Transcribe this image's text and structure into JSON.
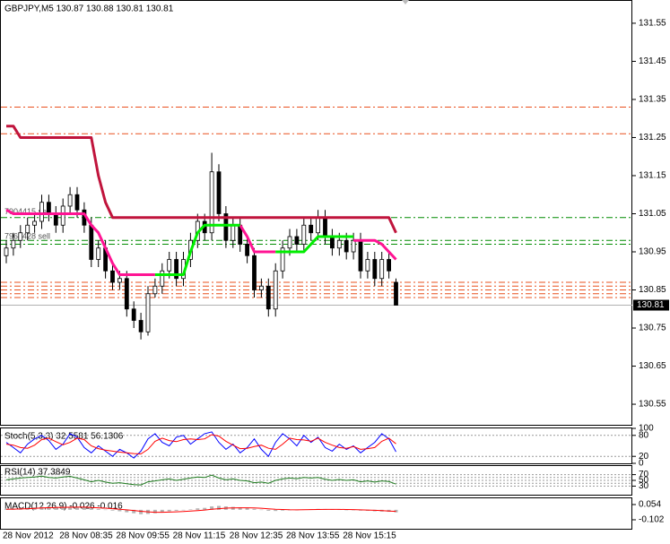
{
  "chart_data": [
    {
      "type": "candlestick",
      "title": "GBPJPY,M5  130.87 130.88 130.81 130.81",
      "categories": [
        "28 Nov 2012",
        null,
        null,
        null,
        null,
        null,
        null,
        null,
        "28 Nov 08:35",
        null,
        null,
        null,
        null,
        null,
        null,
        null,
        "28 Nov 09:55",
        null,
        null,
        null,
        null,
        null,
        null,
        null,
        "28 Nov 11:15",
        null,
        null,
        null,
        null,
        null,
        null,
        null,
        "28 Nov 12:35",
        null,
        null,
        null,
        null,
        null,
        null,
        null,
        "28 Nov 13:55",
        null,
        null,
        null,
        null,
        null,
        null,
        null,
        "28 Nov 15:15",
        null,
        null,
        null,
        null,
        null,
        null,
        null
      ],
      "open": [
        130.94,
        130.96,
        130.98,
        131.0,
        131.02,
        131.03,
        131.08,
        131.05,
        131.02,
        131.07,
        131.1,
        131.06,
        131.02,
        130.93,
        130.96,
        130.9,
        130.87,
        130.88,
        130.8,
        130.77,
        130.74,
        130.84,
        130.86,
        130.9,
        130.93,
        130.88,
        130.93,
        130.98,
        131.03,
        131.0,
        131.16,
        131.05,
        130.98,
        131.02,
        130.97,
        130.94,
        130.85,
        130.86,
        130.8,
        130.9,
        130.96,
        130.99,
        130.97,
        131.02,
        131.0,
        131.04,
        130.99,
        130.96,
        130.98,
        130.95,
        130.98,
        130.9,
        130.93,
        130.88,
        130.93,
        130.87
      ],
      "high": [
        130.98,
        131.0,
        131.02,
        131.04,
        131.05,
        131.1,
        131.1,
        131.07,
        131.09,
        131.12,
        131.12,
        131.08,
        131.04,
        130.98,
        130.98,
        130.92,
        130.9,
        130.9,
        130.82,
        130.79,
        130.86,
        130.88,
        130.92,
        130.95,
        130.95,
        130.95,
        131.0,
        131.05,
        131.05,
        131.21,
        131.18,
        131.07,
        131.04,
        131.04,
        130.99,
        130.96,
        130.88,
        130.88,
        130.92,
        130.98,
        131.01,
        131.01,
        131.04,
        131.04,
        131.06,
        131.06,
        131.01,
        131.0,
        131.0,
        131.0,
        131.0,
        130.95,
        130.95,
        130.95,
        130.95,
        130.88
      ],
      "low": [
        130.92,
        130.94,
        130.96,
        130.98,
        131.0,
        131.01,
        131.03,
        131.0,
        131.0,
        131.05,
        131.04,
        131.0,
        130.91,
        130.91,
        130.88,
        130.85,
        130.85,
        130.78,
        130.75,
        130.72,
        130.73,
        130.83,
        130.84,
        130.88,
        130.86,
        130.86,
        130.91,
        130.96,
        130.98,
        130.98,
        131.03,
        130.96,
        130.96,
        130.95,
        130.92,
        130.83,
        130.83,
        130.78,
        130.78,
        130.88,
        130.94,
        130.95,
        130.95,
        130.98,
        130.98,
        130.97,
        130.94,
        130.94,
        130.93,
        130.93,
        130.88,
        130.88,
        130.86,
        130.86,
        130.88,
        130.81
      ],
      "close": [
        130.96,
        130.98,
        131.0,
        131.02,
        131.03,
        131.08,
        131.05,
        131.02,
        131.07,
        131.1,
        131.06,
        131.02,
        130.93,
        130.96,
        130.9,
        130.87,
        130.88,
        130.8,
        130.77,
        130.74,
        130.84,
        130.86,
        130.9,
        130.93,
        130.88,
        130.93,
        130.98,
        131.03,
        131.0,
        131.16,
        131.05,
        130.98,
        131.02,
        130.97,
        130.94,
        130.85,
        130.86,
        130.8,
        130.9,
        130.96,
        130.99,
        130.97,
        131.02,
        131.0,
        131.04,
        130.99,
        130.96,
        130.98,
        130.95,
        130.98,
        130.9,
        130.93,
        130.88,
        130.93,
        130.9,
        130.81
      ],
      "lines": [
        {
          "color": "#c0143c",
          "values": [
            131.28,
            131.28,
            131.25,
            131.25,
            131.25,
            131.25,
            131.25,
            131.25,
            131.25,
            131.25,
            131.25,
            131.25,
            131.25,
            131.15,
            131.08,
            131.04,
            131.04,
            131.04,
            131.04,
            131.04,
            131.04,
            131.04,
            131.04,
            131.04,
            131.04,
            131.04,
            131.04,
            131.04,
            131.04,
            131.04,
            131.04,
            131.04,
            131.04,
            131.04,
            131.04,
            131.04,
            131.04,
            131.04,
            131.04,
            131.04,
            131.04,
            131.04,
            131.04,
            131.04,
            131.04,
            131.04,
            131.04,
            131.04,
            131.04,
            131.04,
            131.04,
            131.04,
            131.04,
            131.04,
            131.04,
            131.0
          ]
        },
        {
          "color": "#ff1493",
          "values": [
            131.06,
            131.05,
            131.05,
            131.05,
            131.05,
            131.05,
            131.05,
            131.05,
            131.05,
            131.05,
            131.05,
            131.05,
            131.02,
            131.0,
            130.96,
            130.92,
            130.89,
            130.89,
            130.89,
            130.89,
            130.89,
            130.89,
            null,
            null,
            null,
            null,
            null,
            null,
            null,
            null,
            null,
            null,
            null,
            131.02,
            130.99,
            130.95,
            130.95,
            130.95,
            130.95,
            null,
            null,
            null,
            null,
            null,
            null,
            null,
            null,
            null,
            null,
            130.98,
            130.98,
            130.98,
            130.98,
            130.97,
            130.95,
            130.93
          ]
        },
        {
          "color": "#00ee00",
          "values": [
            null,
            null,
            null,
            null,
            null,
            null,
            null,
            null,
            null,
            null,
            null,
            null,
            null,
            null,
            null,
            null,
            null,
            null,
            null,
            null,
            null,
            130.89,
            130.89,
            130.89,
            130.89,
            130.89,
            130.95,
            131.0,
            131.02,
            131.02,
            131.02,
            131.02,
            131.02,
            131.02,
            null,
            null,
            null,
            null,
            130.95,
            130.95,
            130.95,
            130.95,
            130.95,
            130.97,
            130.99,
            130.99,
            130.99,
            130.99,
            130.99,
            130.99,
            null,
            null,
            null,
            null,
            null,
            null
          ]
        }
      ],
      "levels": [
        {
          "value": 131.33,
          "color": "#e8501e"
        },
        {
          "value": 131.26,
          "color": "#e8501e"
        },
        {
          "value": 131.04,
          "color": "#008c00"
        },
        {
          "value": 130.98,
          "color": "#008c00"
        },
        {
          "value": 130.97,
          "color": "#008c00"
        },
        {
          "value": 130.87,
          "color": "#e8501e"
        },
        {
          "value": 130.86,
          "color": "#e8501e"
        },
        {
          "value": 130.85,
          "color": "#e8501e"
        },
        {
          "value": 130.84,
          "color": "#e8501e"
        },
        {
          "value": 130.83,
          "color": "#e8501e"
        }
      ],
      "annotations": [
        {
          "text": "7904415 sell",
          "value": 131.04
        },
        {
          "text": "7964428 sell",
          "value": 130.98
        }
      ],
      "last_price": 130.81,
      "ylim": [
        130.496,
        131.611
      ],
      "yticks": [
        130.55,
        130.65,
        130.75,
        130.85,
        130.95,
        131.05,
        131.15,
        131.25,
        131.35,
        131.45,
        131.55
      ]
    },
    {
      "type": "line",
      "label": "Stoch(5,3,3) 32.5581 56.1306",
      "ylim": [
        0,
        100
      ],
      "yticks": [
        0,
        20,
        80,
        100
      ],
      "levels": [
        20,
        80
      ],
      "series": [
        {
          "color": "#0000ff",
          "values": [
            60,
            45,
            30,
            55,
            70,
            80,
            65,
            40,
            55,
            85,
            75,
            45,
            30,
            50,
            35,
            20,
            40,
            30,
            15,
            35,
            70,
            85,
            60,
            50,
            75,
            80,
            55,
            70,
            85,
            90,
            60,
            40,
            55,
            30,
            45,
            70,
            40,
            20,
            60,
            85,
            70,
            50,
            80,
            60,
            75,
            45,
            35,
            55,
            40,
            50,
            30,
            45,
            60,
            85,
            70,
            33
          ]
        },
        {
          "color": "#ff0000",
          "values": [
            55,
            52,
            45,
            43,
            52,
            68,
            72,
            62,
            53,
            60,
            72,
            68,
            50,
            42,
            38,
            35,
            32,
            30,
            28,
            27,
            40,
            63,
            72,
            65,
            62,
            68,
            70,
            68,
            70,
            82,
            78,
            63,
            52,
            42,
            43,
            48,
            52,
            43,
            40,
            55,
            72,
            68,
            67,
            63,
            72,
            60,
            52,
            45,
            43,
            48,
            40,
            42,
            45,
            63,
            72,
            56
          ]
        }
      ]
    },
    {
      "type": "line",
      "label": "RSI(14) 37.3849",
      "ylim": [
        0,
        100
      ],
      "yticks": [
        30,
        50,
        70
      ],
      "levels": [
        30,
        40,
        50,
        60,
        70
      ],
      "series": [
        {
          "color": "#1e7a1e",
          "values": [
            52,
            55,
            58,
            60,
            62,
            65,
            60,
            58,
            62,
            64,
            58,
            52,
            45,
            50,
            44,
            40,
            42,
            38,
            35,
            34,
            45,
            48,
            52,
            55,
            50,
            54,
            58,
            62,
            60,
            68,
            58,
            52,
            55,
            50,
            48,
            42,
            44,
            40,
            50,
            55,
            58,
            56,
            60,
            58,
            60,
            54,
            50,
            53,
            50,
            52,
            45,
            48,
            44,
            48,
            46,
            37
          ]
        }
      ]
    },
    {
      "type": "macd",
      "label": "MACD(12,26,9) -0.026 -0.016",
      "ylim": [
        -0.194,
        0.118
      ],
      "yticks": [
        -0.102,
        0.054
      ],
      "color": "#b4b4b4",
      "values": [
        0.01,
        0.012,
        0.015,
        0.02,
        0.025,
        0.03,
        0.032,
        0.03,
        0.028,
        0.03,
        0.03,
        0.025,
        0.015,
        0.01,
        0.002,
        -0.008,
        -0.015,
        -0.025,
        -0.035,
        -0.045,
        -0.042,
        -0.035,
        -0.025,
        -0.015,
        -0.01,
        -0.005,
        0.005,
        0.015,
        0.02,
        0.035,
        0.04,
        0.035,
        0.03,
        0.025,
        0.02,
        0.01,
        0.002,
        -0.01,
        -0.012,
        -0.008,
        -0.003,
        0.0,
        0.004,
        0.006,
        0.01,
        0.008,
        0.004,
        0.003,
        0.0,
        -0.003,
        -0.008,
        -0.01,
        -0.015,
        -0.018,
        -0.02,
        -0.026
      ],
      "series": [
        {
          "color": "#ff0000",
          "values": [
            0.005,
            0.007,
            0.009,
            0.012,
            0.015,
            0.019,
            0.022,
            0.024,
            0.025,
            0.026,
            0.027,
            0.027,
            0.024,
            0.021,
            0.017,
            0.012,
            0.006,
            0.0,
            -0.007,
            -0.015,
            -0.021,
            -0.025,
            -0.025,
            -0.023,
            -0.021,
            -0.018,
            -0.013,
            -0.008,
            -0.002,
            0.005,
            0.012,
            0.017,
            0.02,
            0.021,
            0.021,
            0.019,
            0.016,
            0.011,
            0.006,
            0.003,
            0.001,
            0.0,
            0.001,
            0.002,
            0.003,
            0.004,
            0.004,
            0.004,
            0.003,
            0.002,
            0.0,
            -0.002,
            -0.005,
            -0.008,
            -0.012,
            -0.016
          ]
        }
      ]
    }
  ]
}
